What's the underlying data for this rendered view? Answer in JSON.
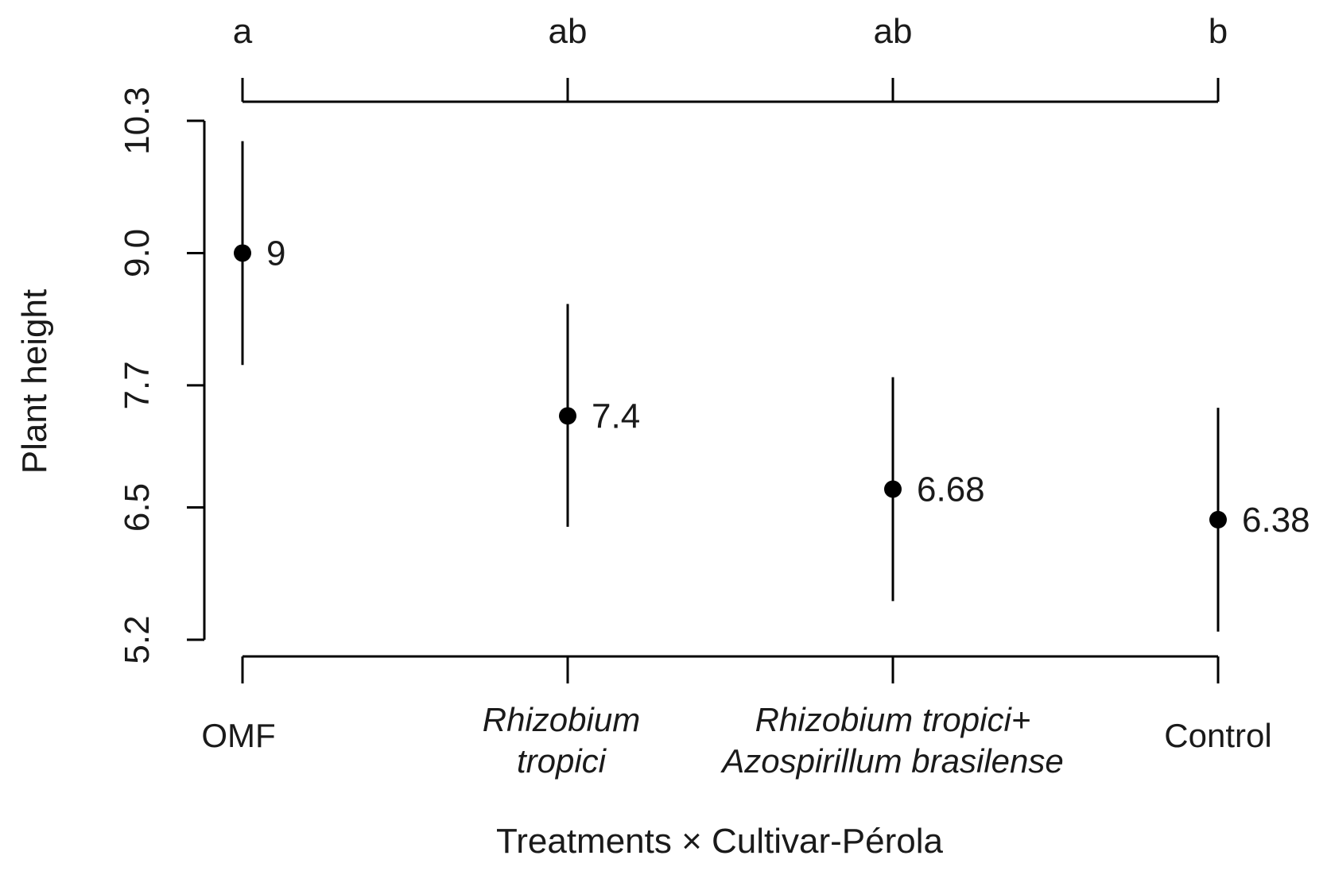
{
  "chart_data": {
    "type": "scatter",
    "xlabel": "Treatments × Cultivar-Pérola",
    "ylabel": "Plant height",
    "yticks": [
      "5.2",
      "6.5",
      "7.7",
      "9.0",
      "10.3"
    ],
    "ylim": [
      5.2,
      10.3
    ],
    "categories": [
      {
        "lines": [
          "OMF"
        ],
        "italic": false
      },
      {
        "lines": [
          "Rhizobium",
          "tropici"
        ],
        "italic": true
      },
      {
        "lines": [
          "Rhizobium tropici+",
          "Azospirillum brasilense"
        ],
        "italic": true
      },
      {
        "lines": [
          "Control"
        ],
        "italic": false
      }
    ],
    "values": [
      9.0,
      7.4,
      6.68,
      6.38
    ],
    "value_labels": [
      "9",
      "7.4",
      "6.68",
      "6.38"
    ],
    "ci_lower": [
      7.9,
      6.31,
      5.58,
      5.28
    ],
    "ci_upper": [
      10.1,
      8.5,
      7.78,
      7.48
    ],
    "group_letters": [
      "a",
      "ab",
      "ab",
      "b"
    ],
    "grid": false,
    "legend": "none"
  }
}
